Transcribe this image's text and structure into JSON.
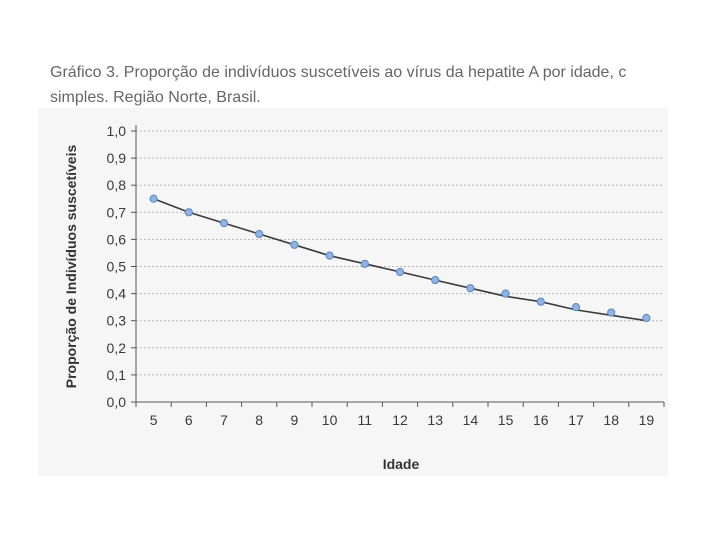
{
  "caption": {
    "line1": "Gráfico 3. Proporção de indivíduos suscetíveis ao vírus da hepatite A por idade, c",
    "line2": "simples. Região Norte, Brasil."
  },
  "colors": {
    "line": "#3b3b3b",
    "marker_fill": "#8fb4e3",
    "marker_stroke": "#5b86c2",
    "grid": "#b8b8b8",
    "panel": "#f6f6f6"
  },
  "chart_data": {
    "type": "line",
    "xlabel": "Idade",
    "ylabel": "Proporção de Indivíduos suscetíveis",
    "x": [
      5,
      6,
      7,
      8,
      9,
      10,
      11,
      12,
      13,
      14,
      15,
      16,
      17,
      18,
      19
    ],
    "y_tick_labels": [
      "0,0",
      "0,1",
      "0,2",
      "0,3",
      "0,4",
      "0,5",
      "0,6",
      "0,7",
      "0,8",
      "0,9",
      "1,0"
    ],
    "ylim": [
      0,
      1.0
    ],
    "grid": "horizontal dotted",
    "series": [
      {
        "style": "markers",
        "values": [
          0.75,
          0.7,
          0.66,
          0.62,
          0.58,
          0.54,
          0.51,
          0.48,
          0.45,
          0.42,
          0.4,
          0.37,
          0.35,
          0.33,
          0.31
        ]
      },
      {
        "style": "trend line",
        "values": [
          0.75,
          0.7,
          0.66,
          0.62,
          0.58,
          0.54,
          0.51,
          0.48,
          0.45,
          0.42,
          0.39,
          0.37,
          0.34,
          0.32,
          0.3
        ]
      }
    ]
  }
}
